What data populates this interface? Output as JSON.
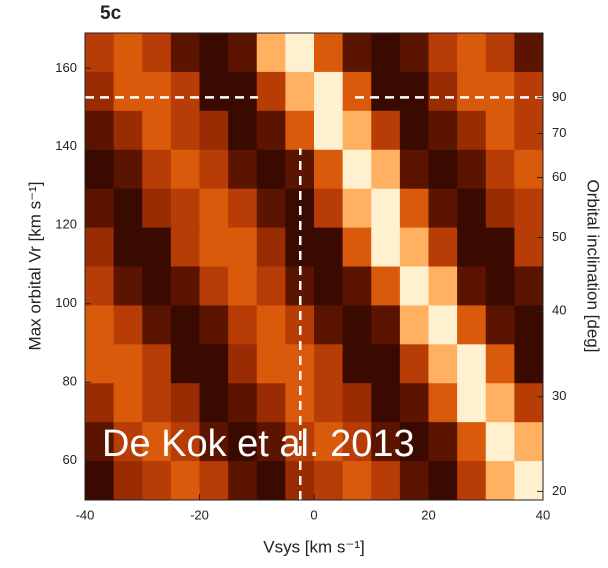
{
  "chart_data": {
    "type": "heatmap",
    "title": "5c",
    "x_label": "Vsys [km s⁻¹]",
    "y_label": "Max orbital Vr [km s⁻¹]",
    "y2_label": "Orbital inclination [deg]",
    "annotation": "De Kok et al. 2013",
    "xlim": [
      -40,
      40
    ],
    "xticks": [
      -40,
      -20,
      0,
      20,
      40
    ],
    "ylim": [
      50,
      169
    ],
    "yticks": [
      60,
      80,
      100,
      120,
      140,
      160
    ],
    "y2_scale": "sine",
    "y2ticks": [
      20,
      30,
      40,
      50,
      60,
      70,
      90
    ],
    "reference_lines": {
      "x": -2.4,
      "y": 152.6,
      "x_line_top": 139.6,
      "color": "#ffffff"
    },
    "colorscale": [
      "#1a0500",
      "#3a0a00",
      "#5a1400",
      "#7a1e02",
      "#9a2c04",
      "#b83c06",
      "#d85a0a",
      "#f07a1a",
      "#ffb060",
      "#fff0d0"
    ],
    "z": [
      [
        5,
        6,
        5,
        2,
        1,
        2,
        8,
        9,
        6,
        2,
        1,
        2,
        5,
        6,
        5,
        2
      ],
      [
        4,
        6,
        6,
        5,
        1,
        1,
        5,
        8,
        9,
        6,
        1,
        1,
        4,
        6,
        6,
        5
      ],
      [
        2,
        4,
        6,
        5,
        4,
        1,
        2,
        6,
        9,
        8,
        5,
        1,
        2,
        4,
        6,
        5
      ],
      [
        1,
        2,
        5,
        6,
        5,
        2,
        1,
        2,
        6,
        9,
        8,
        2,
        1,
        2,
        5,
        6
      ],
      [
        2,
        1,
        4,
        5,
        6,
        5,
        2,
        1,
        5,
        8,
        9,
        6,
        2,
        1,
        4,
        5
      ],
      [
        4,
        1,
        1,
        5,
        6,
        6,
        4,
        1,
        1,
        6,
        9,
        8,
        5,
        1,
        1,
        5
      ],
      [
        5,
        2,
        1,
        2,
        5,
        6,
        5,
        2,
        1,
        2,
        6,
        9,
        8,
        2,
        1,
        2
      ],
      [
        6,
        5,
        2,
        1,
        2,
        5,
        6,
        5,
        2,
        1,
        2,
        8,
        9,
        6,
        2,
        1
      ],
      [
        6,
        6,
        5,
        1,
        1,
        4,
        6,
        6,
        5,
        1,
        1,
        5,
        8,
        9,
        6,
        1
      ],
      [
        4,
        6,
        5,
        4,
        1,
        2,
        4,
        6,
        5,
        4,
        1,
        2,
        6,
        9,
        8,
        5
      ],
      [
        2,
        5,
        6,
        5,
        2,
        1,
        2,
        5,
        6,
        5,
        2,
        1,
        2,
        6,
        9,
        8
      ],
      [
        1,
        4,
        5,
        6,
        5,
        2,
        1,
        4,
        5,
        6,
        5,
        2,
        1,
        5,
        8,
        9
      ]
    ]
  }
}
